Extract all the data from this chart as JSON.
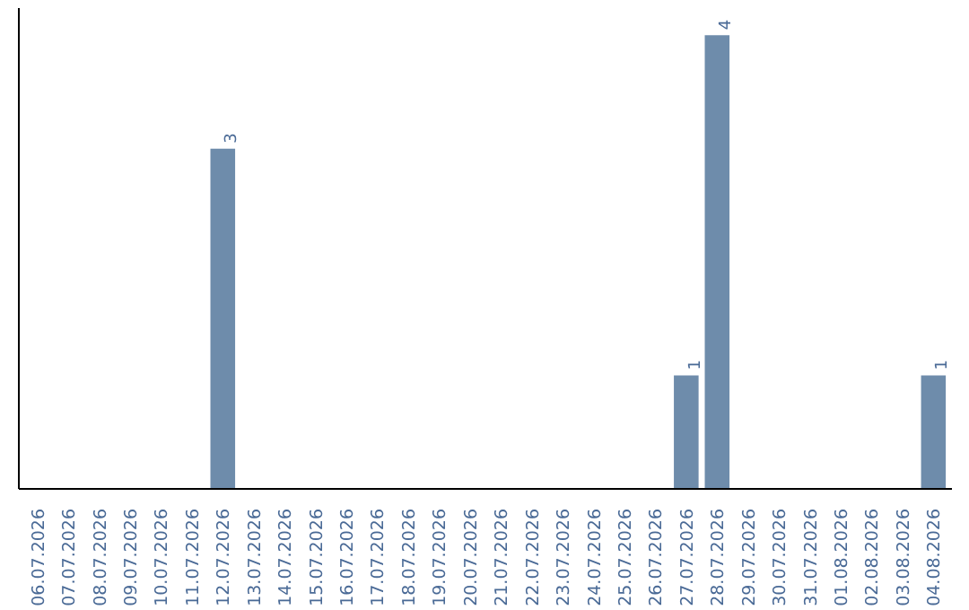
{
  "chart_data": {
    "type": "bar",
    "categories": [
      "06.07.2026",
      "07.07.2026",
      "08.07.2026",
      "09.07.2026",
      "10.07.2026",
      "11.07.2026",
      "12.07.2026",
      "13.07.2026",
      "14.07.2026",
      "15.07.2026",
      "16.07.2026",
      "17.07.2026",
      "18.07.2026",
      "19.07.2026",
      "20.07.2026",
      "21.07.2026",
      "22.07.2026",
      "23.07.2026",
      "24.07.2026",
      "25.07.2026",
      "26.07.2026",
      "27.07.2026",
      "28.07.2026",
      "29.07.2026",
      "30.07.2026",
      "31.07.2026",
      "01.08.2026",
      "02.08.2026",
      "03.08.2026",
      "04.08.2026"
    ],
    "values": [
      0,
      0,
      0,
      0,
      0,
      0,
      3,
      0,
      0,
      0,
      0,
      0,
      0,
      0,
      0,
      0,
      0,
      0,
      0,
      0,
      0,
      1,
      4,
      0,
      0,
      0,
      0,
      0,
      0,
      1
    ],
    "value_labels": [
      null,
      null,
      null,
      null,
      null,
      null,
      "3",
      null,
      null,
      null,
      null,
      null,
      null,
      null,
      null,
      null,
      null,
      null,
      null,
      null,
      null,
      "1",
      "4",
      null,
      null,
      null,
      null,
      null,
      null,
      "1"
    ],
    "color": "#6e8cab",
    "grid": false
  }
}
